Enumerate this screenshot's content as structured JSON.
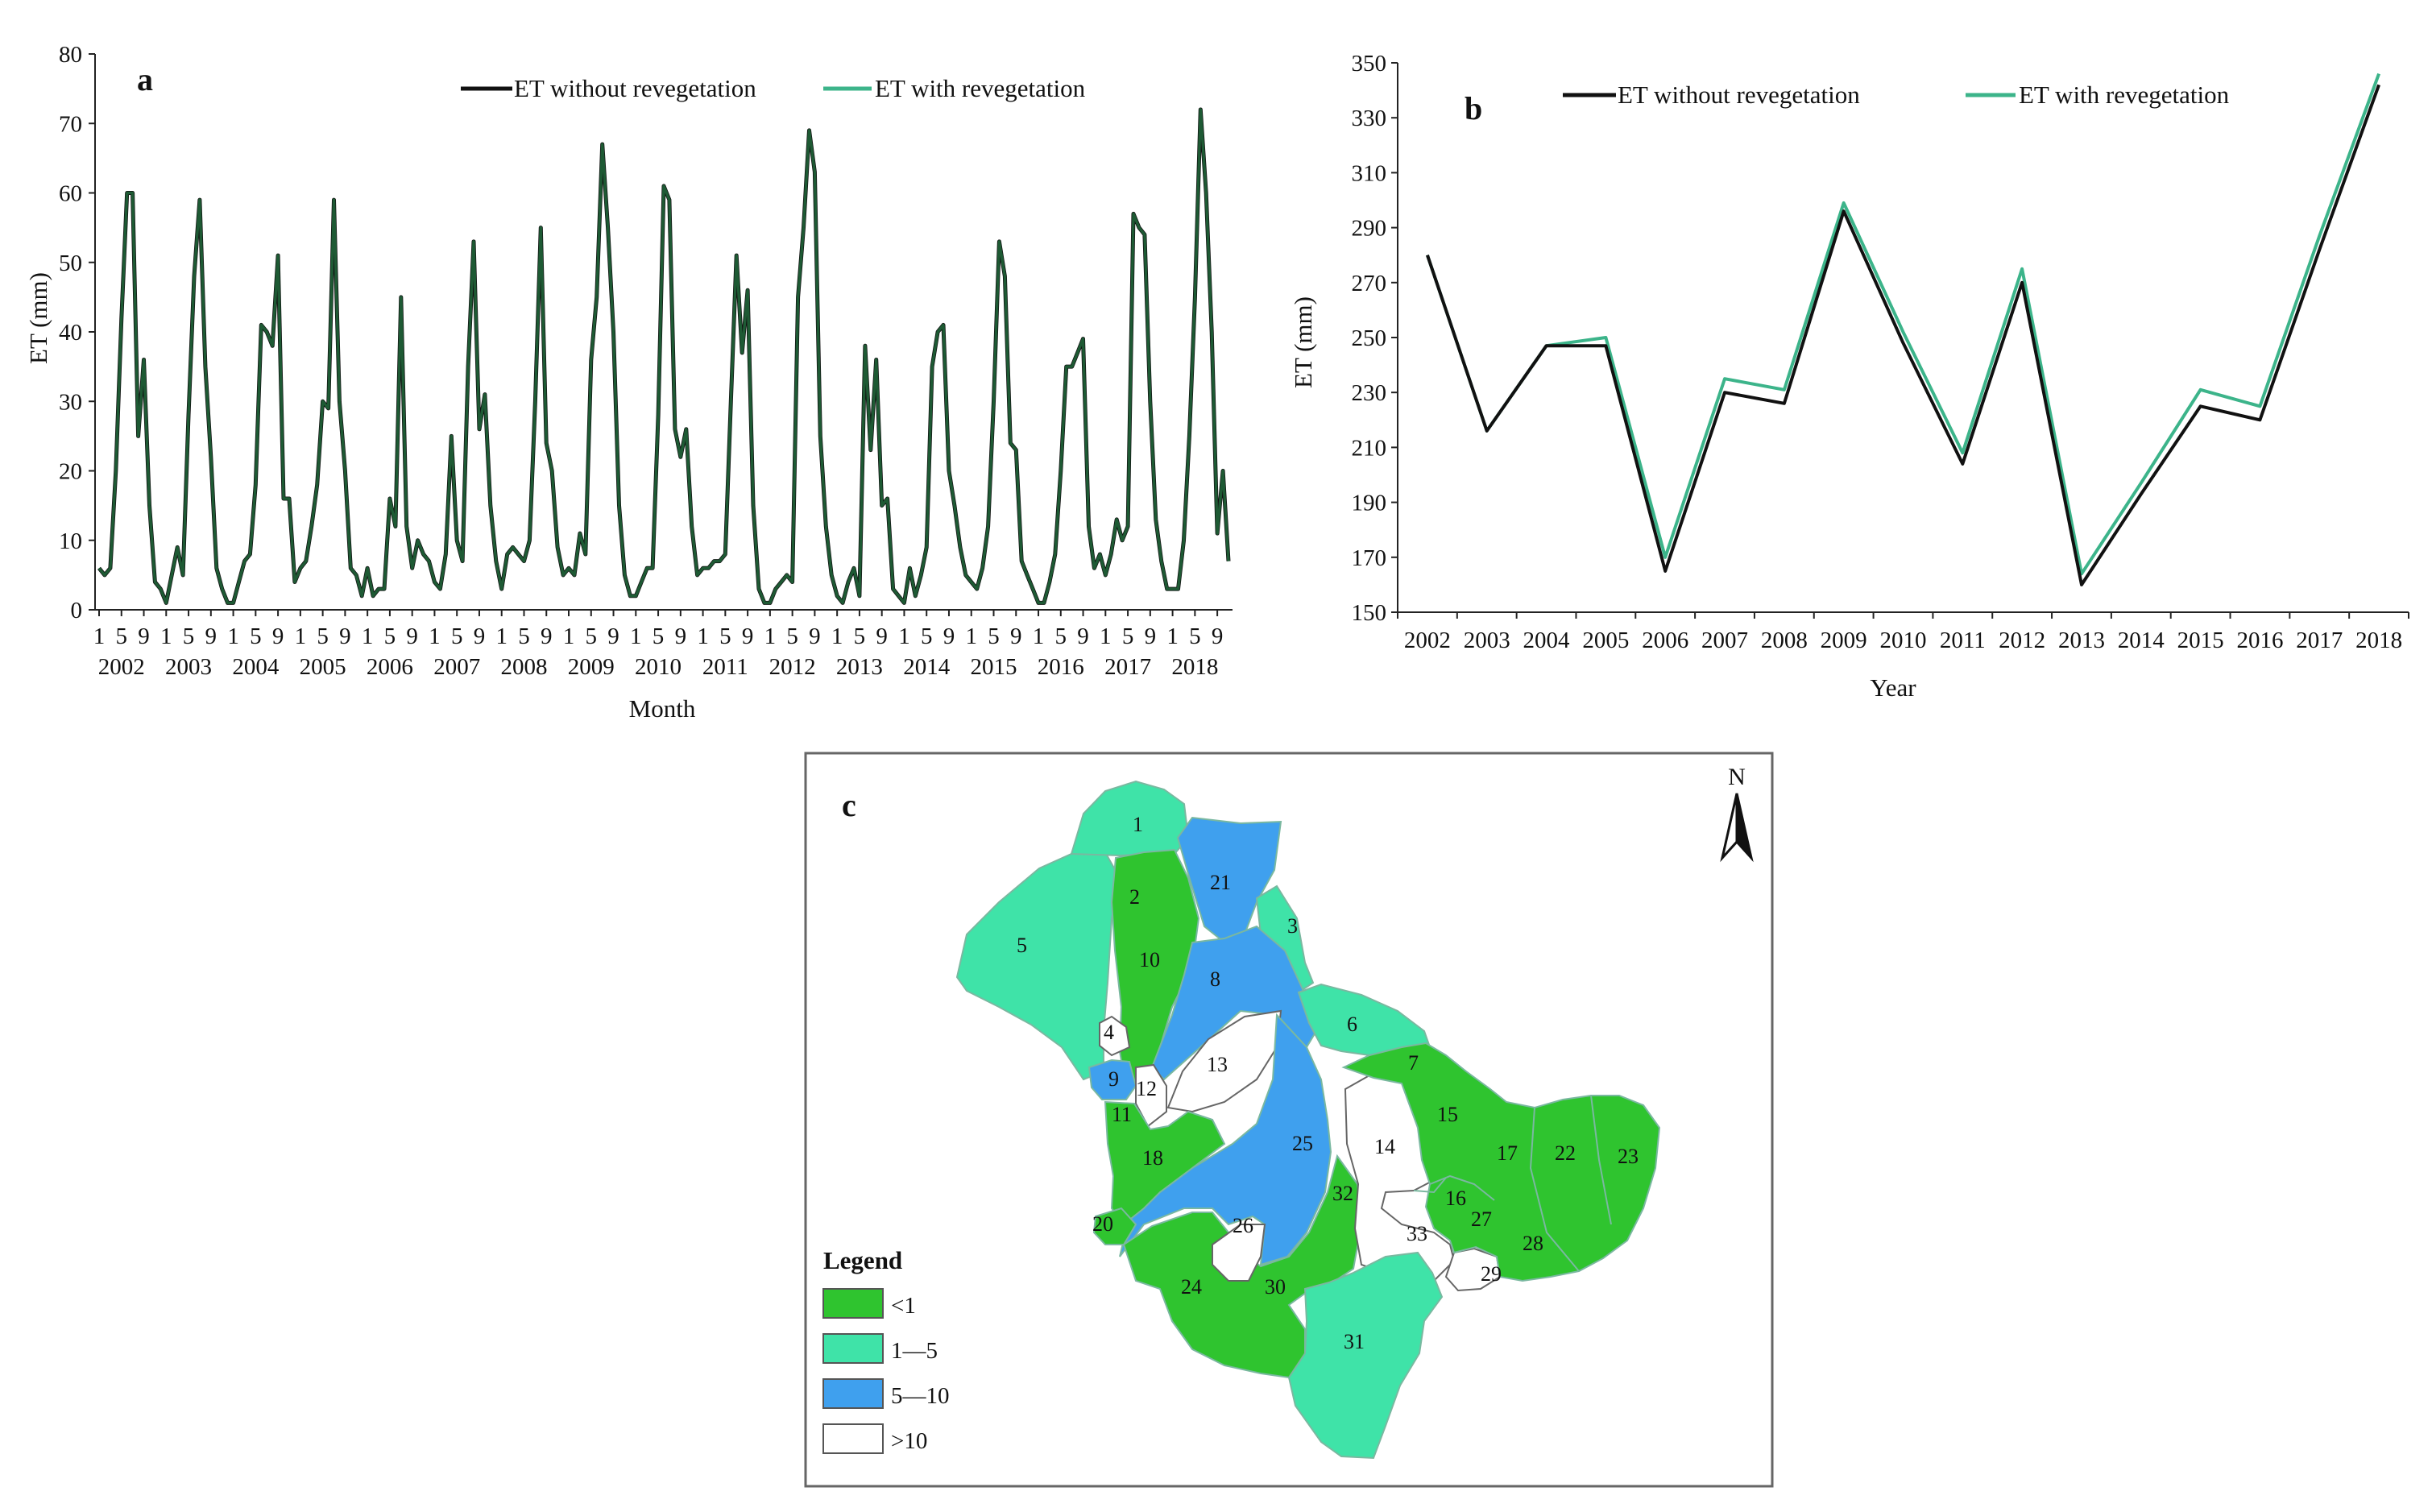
{
  "figure": {
    "panels": {
      "a": {
        "letter": "a"
      },
      "b": {
        "letter": "b"
      },
      "c": {
        "letter": "c"
      }
    },
    "colors": {
      "without": "#111111",
      "with": "#3cb48a",
      "monthly_line": "#1e5a34",
      "axis": "#222222"
    }
  },
  "chart_data": [
    {
      "id": "a",
      "type": "line",
      "title": "a",
      "xlabel": "Month",
      "ylabel": "ET (mm)",
      "ylim": [
        0,
        80
      ],
      "yticks": [
        "0",
        "10",
        "20",
        "30",
        "40",
        "50",
        "60",
        "70",
        "80"
      ],
      "month_ticks": [
        "1",
        "5",
        "9"
      ],
      "years": [
        "2002",
        "2003",
        "2004",
        "2005",
        "2006",
        "2007",
        "2008",
        "2009",
        "2010",
        "2011",
        "2012",
        "2013",
        "2014",
        "2015",
        "2016",
        "2017",
        "2018"
      ],
      "legend": [
        "ET without revegetation",
        "ET with revegetation"
      ],
      "series": [
        {
          "name": "ET without revegetation",
          "values": [
            6,
            5,
            6,
            20,
            42,
            60,
            60,
            25,
            36,
            15,
            4,
            3,
            1,
            5,
            9,
            5,
            28,
            48,
            59,
            35,
            22,
            6,
            3,
            1,
            1,
            4,
            7,
            8,
            18,
            41,
            40,
            38,
            51,
            16,
            16,
            4,
            6,
            7,
            12,
            18,
            30,
            29,
            59,
            30,
            20,
            6,
            5,
            2,
            6,
            2,
            3,
            3,
            16,
            12,
            45,
            12,
            6,
            10,
            8,
            7,
            4,
            3,
            8,
            25,
            10,
            7,
            35,
            53,
            26,
            31,
            15,
            7,
            3,
            8,
            9,
            8,
            7,
            10,
            30,
            55,
            24,
            20,
            9,
            5,
            6,
            5,
            11,
            8,
            36,
            45,
            67,
            55,
            40,
            15,
            5,
            2,
            2,
            4,
            6,
            6,
            28,
            61,
            59,
            26,
            22,
            26,
            12,
            5,
            6,
            6,
            7,
            7,
            8,
            30,
            51,
            37,
            46,
            15,
            3,
            1,
            1,
            3,
            4,
            5,
            4,
            45,
            55,
            69,
            63,
            25,
            12,
            5,
            2,
            1,
            4,
            6,
            2,
            38,
            23,
            36,
            15,
            16,
            3,
            2,
            1,
            6,
            2,
            5,
            9,
            35,
            40,
            41,
            20,
            15,
            9,
            5,
            4,
            3,
            6,
            12,
            30,
            53,
            48,
            24,
            23,
            7,
            5,
            3,
            1,
            1,
            4,
            8,
            20,
            35,
            35,
            37,
            39,
            12,
            6,
            8,
            5,
            8,
            13,
            10,
            12,
            57,
            55,
            54,
            30,
            13,
            7,
            3,
            3,
            3,
            10,
            25,
            45,
            72,
            60,
            40,
            11,
            20,
            7
          ]
        },
        {
          "name": "ET with revegetation",
          "values": [
            6,
            5,
            6,
            20,
            42,
            60,
            60,
            25,
            36,
            15,
            4,
            3,
            1,
            5,
            9,
            5,
            28,
            48,
            59,
            35,
            22,
            6,
            3,
            1,
            1,
            4,
            7,
            8,
            18,
            41,
            40,
            38,
            51,
            16,
            16,
            4,
            6,
            7,
            12,
            18,
            30,
            29,
            59,
            30,
            20,
            6,
            5,
            2,
            6,
            2,
            3,
            3,
            16,
            12,
            45,
            12,
            6,
            10,
            8,
            7,
            4,
            3,
            8,
            25,
            10,
            7,
            35,
            53,
            26,
            31,
            15,
            7,
            3,
            8,
            9,
            8,
            7,
            10,
            30,
            55,
            24,
            20,
            9,
            5,
            6,
            5,
            11,
            8,
            36,
            45,
            67,
            55,
            40,
            15,
            5,
            2,
            2,
            4,
            6,
            6,
            28,
            61,
            59,
            26,
            22,
            26,
            12,
            5,
            6,
            6,
            7,
            7,
            8,
            30,
            51,
            37,
            46,
            15,
            3,
            1,
            1,
            3,
            4,
            5,
            4,
            45,
            55,
            69,
            63,
            25,
            12,
            5,
            2,
            1,
            4,
            6,
            2,
            38,
            23,
            36,
            15,
            16,
            3,
            2,
            1,
            6,
            2,
            5,
            9,
            35,
            40,
            41,
            20,
            15,
            9,
            5,
            4,
            3,
            6,
            12,
            30,
            53,
            48,
            24,
            23,
            7,
            5,
            3,
            1,
            1,
            4,
            8,
            20,
            35,
            35,
            37,
            39,
            12,
            6,
            8,
            5,
            8,
            13,
            10,
            12,
            57,
            55,
            54,
            30,
            13,
            7,
            3,
            3,
            3,
            10,
            25,
            45,
            72,
            60,
            40,
            11,
            20,
            7
          ]
        }
      ]
    },
    {
      "id": "b",
      "type": "line",
      "title": "b",
      "xlabel": "Year",
      "ylabel": "ET (mm)",
      "ylim": [
        150,
        350
      ],
      "yticks": [
        "150",
        "170",
        "190",
        "210",
        "230",
        "250",
        "270",
        "290",
        "310",
        "330",
        "350"
      ],
      "categories": [
        "2002",
        "2003",
        "2004",
        "2005",
        "2006",
        "2007",
        "2008",
        "2009",
        "2010",
        "2011",
        "2012",
        "2013",
        "2014",
        "2015",
        "2016",
        "2017",
        "2018"
      ],
      "legend": [
        "ET without revegetation",
        "ET with revegetation"
      ],
      "series": [
        {
          "name": "ET without revegetation",
          "values": [
            280,
            216,
            247,
            247,
            165,
            230,
            226,
            296,
            248,
            204,
            270,
            160,
            193,
            225,
            220,
            282,
            342
          ]
        },
        {
          "name": "ET with revegetation",
          "values": [
            280,
            216,
            247,
            250,
            170,
            235,
            231,
            299,
            252,
            208,
            275,
            164,
            197,
            231,
            225,
            287,
            346
          ]
        }
      ]
    },
    {
      "id": "c",
      "type": "map",
      "title": "c",
      "north_label": "N",
      "legend_title": "Legend",
      "legend": [
        {
          "label": "<1",
          "color": "#2fc42f"
        },
        {
          "label": "1—5",
          "color": "#3fe3a8"
        },
        {
          "label": "5—10",
          "color": "#3fa0ee"
        },
        {
          "label": ">10",
          "color": "#ffffff"
        }
      ],
      "regions": [
        {
          "id": "1",
          "class": "1—5"
        },
        {
          "id": "2",
          "class": "<1"
        },
        {
          "id": "3",
          "class": "1—5"
        },
        {
          "id": "4",
          "class": ">10"
        },
        {
          "id": "5",
          "class": "1—5"
        },
        {
          "id": "6",
          "class": "1—5"
        },
        {
          "id": "7",
          "class": "<1"
        },
        {
          "id": "8",
          "class": "5—10"
        },
        {
          "id": "9",
          "class": "5—10"
        },
        {
          "id": "10",
          "class": "<1"
        },
        {
          "id": "11",
          "class": "<1"
        },
        {
          "id": "12",
          "class": ">10"
        },
        {
          "id": "13",
          "class": ">10"
        },
        {
          "id": "14",
          "class": ">10"
        },
        {
          "id": "15",
          "class": "<1"
        },
        {
          "id": "16",
          "class": "<1"
        },
        {
          "id": "17",
          "class": "<1"
        },
        {
          "id": "18",
          "class": "<1"
        },
        {
          "id": "20",
          "class": "<1"
        },
        {
          "id": "21",
          "class": "5—10"
        },
        {
          "id": "22",
          "class": "<1"
        },
        {
          "id": "23",
          "class": "<1"
        },
        {
          "id": "24",
          "class": "<1"
        },
        {
          "id": "25",
          "class": "5—10"
        },
        {
          "id": "26",
          "class": ">10"
        },
        {
          "id": "27",
          "class": "<1"
        },
        {
          "id": "28",
          "class": "<1"
        },
        {
          "id": "29",
          "class": ">10"
        },
        {
          "id": "30",
          "class": "<1"
        },
        {
          "id": "31",
          "class": "1—5"
        },
        {
          "id": "32",
          "class": "<1"
        },
        {
          "id": "33",
          "class": ">10"
        }
      ]
    }
  ]
}
